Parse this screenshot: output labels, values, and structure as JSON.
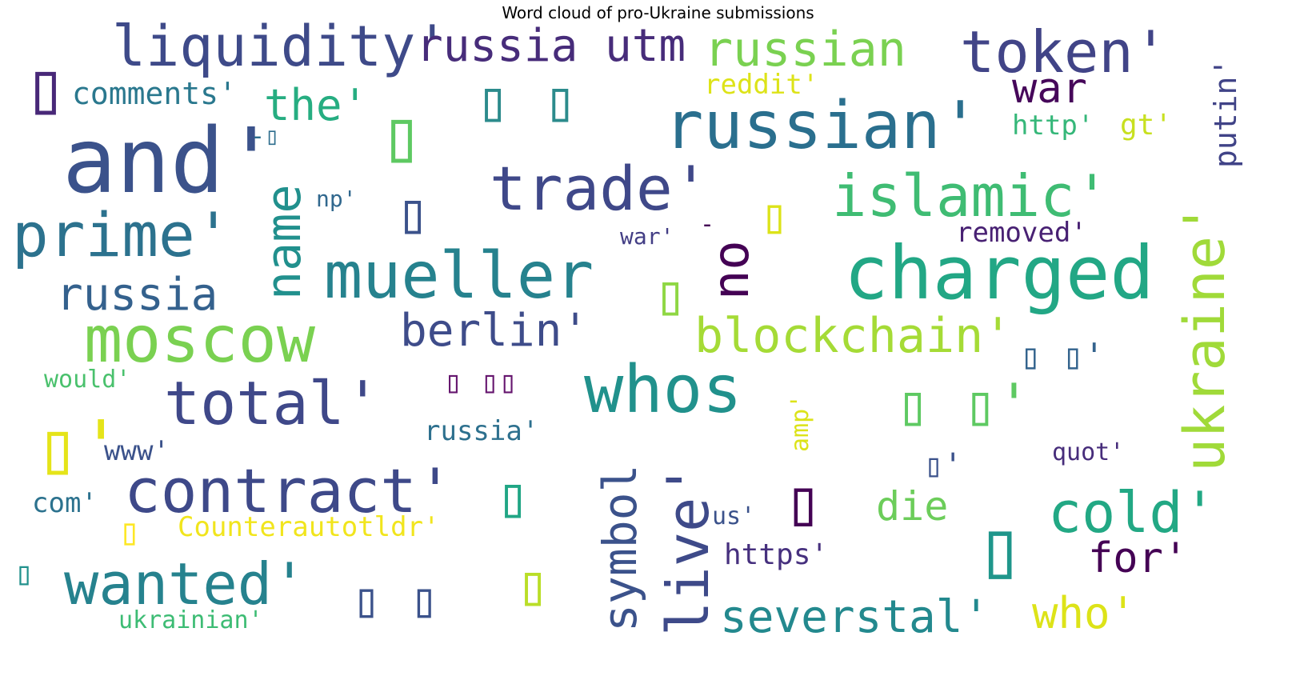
{
  "chart_data": {
    "type": "wordcloud",
    "title": "Word cloud of pro-Ukraine submissions",
    "colormap": "viridis",
    "background": "#ffffff",
    "words": [
      {
        "text": "and'",
        "color": "#3b528b",
        "vertical": false
      },
      {
        "text": "▯",
        "color": "#482878",
        "vertical": false
      },
      {
        "text": "liquidity'",
        "color": "#3e4a89",
        "vertical": false
      },
      {
        "text": "russia utm",
        "color": "#472c7a",
        "vertical": false
      },
      {
        "text": "russian",
        "color": "#7ad151",
        "vertical": false
      },
      {
        "text": "token'",
        "color": "#414487",
        "vertical": false
      },
      {
        "text": "comments'",
        "color": "#2a788e",
        "vertical": false
      },
      {
        "text": "the'",
        "color": "#26ad81",
        "vertical": false
      },
      {
        "text": "▯",
        "color": "#5ec962",
        "vertical": false
      },
      {
        "text": "▯ ▯",
        "color": "#2c8b8c",
        "vertical": false
      },
      {
        "text": "reddit'",
        "color": "#dde318",
        "vertical": false
      },
      {
        "text": "war",
        "color": "#46075a",
        "vertical": false
      },
      {
        "text": "russian'",
        "color": "#2a6f8e",
        "vertical": false
      },
      {
        "text": "http'",
        "color": "#35b779",
        "vertical": false
      },
      {
        "text": "gt'",
        "color": "#c8e020",
        "vertical": false
      },
      {
        "text": "putin'",
        "color": "#404387",
        "vertical": true
      },
      {
        "text": "-▯",
        "color": "#2e6e8e",
        "vertical": false
      },
      {
        "text": "trade'",
        "color": "#3f4889",
        "vertical": false
      },
      {
        "text": "▯",
        "color": "#3b528b",
        "vertical": false
      },
      {
        "text": "islamic'",
        "color": "#3fbc73",
        "vertical": false
      },
      {
        "text": "▯",
        "color": "#dce319",
        "vertical": false
      },
      {
        "text": "prime'",
        "color": "#2c728e",
        "vertical": false
      },
      {
        "text": "name",
        "color": "#21908d",
        "vertical": true
      },
      {
        "text": "np'",
        "color": "#31688e",
        "vertical": false
      },
      {
        "text": "-",
        "color": "#440154",
        "vertical": false
      },
      {
        "text": "war'",
        "color": "#433e85",
        "vertical": false
      },
      {
        "text": "removed'",
        "color": "#482173",
        "vertical": false
      },
      {
        "text": "ukraine'",
        "color": "#a0da39",
        "vertical": true
      },
      {
        "text": "mueller",
        "color": "#26828e",
        "vertical": false
      },
      {
        "text": "▯",
        "color": "#8fd744",
        "vertical": false
      },
      {
        "text": "no",
        "color": "#440154",
        "vertical": true
      },
      {
        "text": "charged",
        "color": "#22a785",
        "vertical": false
      },
      {
        "text": "russia",
        "color": "#34618d",
        "vertical": false
      },
      {
        "text": "moscow",
        "color": "#7ad151",
        "vertical": false
      },
      {
        "text": "berlin'",
        "color": "#3e4c8a",
        "vertical": false
      },
      {
        "text": "blockchain'",
        "color": "#a5db36",
        "vertical": false
      },
      {
        "text": "▯ ▯'",
        "color": "#33638d",
        "vertical": false
      },
      {
        "text": "would'",
        "color": "#4ac16d",
        "vertical": false
      },
      {
        "text": "▯ ▯▯",
        "color": "#65156e",
        "vertical": false
      },
      {
        "text": "total'",
        "color": "#3f4889",
        "vertical": false
      },
      {
        "text": "whos",
        "color": "#21918c",
        "vertical": false
      },
      {
        "text": "▯ ▯'",
        "color": "#5ec962",
        "vertical": false
      },
      {
        "text": "▯'",
        "color": "#e5e419",
        "vertical": false
      },
      {
        "text": "amp'",
        "color": "#dce319",
        "vertical": true
      },
      {
        "text": "www'",
        "color": "#3b528b",
        "vertical": false
      },
      {
        "text": "russia'",
        "color": "#2d708e",
        "vertical": false
      },
      {
        "text": "symbol",
        "color": "#3b528b",
        "vertical": true
      },
      {
        "text": "live'",
        "color": "#3e4a89",
        "vertical": true
      },
      {
        "text": "▯'",
        "color": "#3b528b",
        "vertical": false
      },
      {
        "text": "quot'",
        "color": "#472d7b",
        "vertical": false
      },
      {
        "text": "contract'",
        "color": "#3e4989",
        "vertical": false
      },
      {
        "text": "▯",
        "color": "#21a685",
        "vertical": false
      },
      {
        "text": "▯",
        "color": "#440154",
        "vertical": false
      },
      {
        "text": "com'",
        "color": "#2c728e",
        "vertical": false
      },
      {
        "text": "die",
        "color": "#6ccd5a",
        "vertical": false
      },
      {
        "text": "cold'",
        "color": "#22a884",
        "vertical": false
      },
      {
        "text": "▯",
        "color": "#fde725",
        "vertical": false
      },
      {
        "text": "Counterautotldr'",
        "color": "#f1e51d",
        "vertical": false
      },
      {
        "text": "us'",
        "color": "#3b528b",
        "vertical": false
      },
      {
        "text": "▯",
        "color": "#1f968b",
        "vertical": false
      },
      {
        "text": "https'",
        "color": "#46307e",
        "vertical": false
      },
      {
        "text": "for'",
        "color": "#440154",
        "vertical": false
      },
      {
        "text": "▯",
        "color": "#21918c",
        "vertical": false
      },
      {
        "text": "wanted'",
        "color": "#26828e",
        "vertical": false
      },
      {
        "text": "▯ ▯",
        "color": "#3b528b",
        "vertical": false
      },
      {
        "text": "▯",
        "color": "#bade28",
        "vertical": false
      },
      {
        "text": "severstal'",
        "color": "#23898e",
        "vertical": false
      },
      {
        "text": "who'",
        "color": "#dde318",
        "vertical": false
      },
      {
        "text": "ukrainian'",
        "color": "#3dbc74",
        "vertical": false
      }
    ]
  }
}
